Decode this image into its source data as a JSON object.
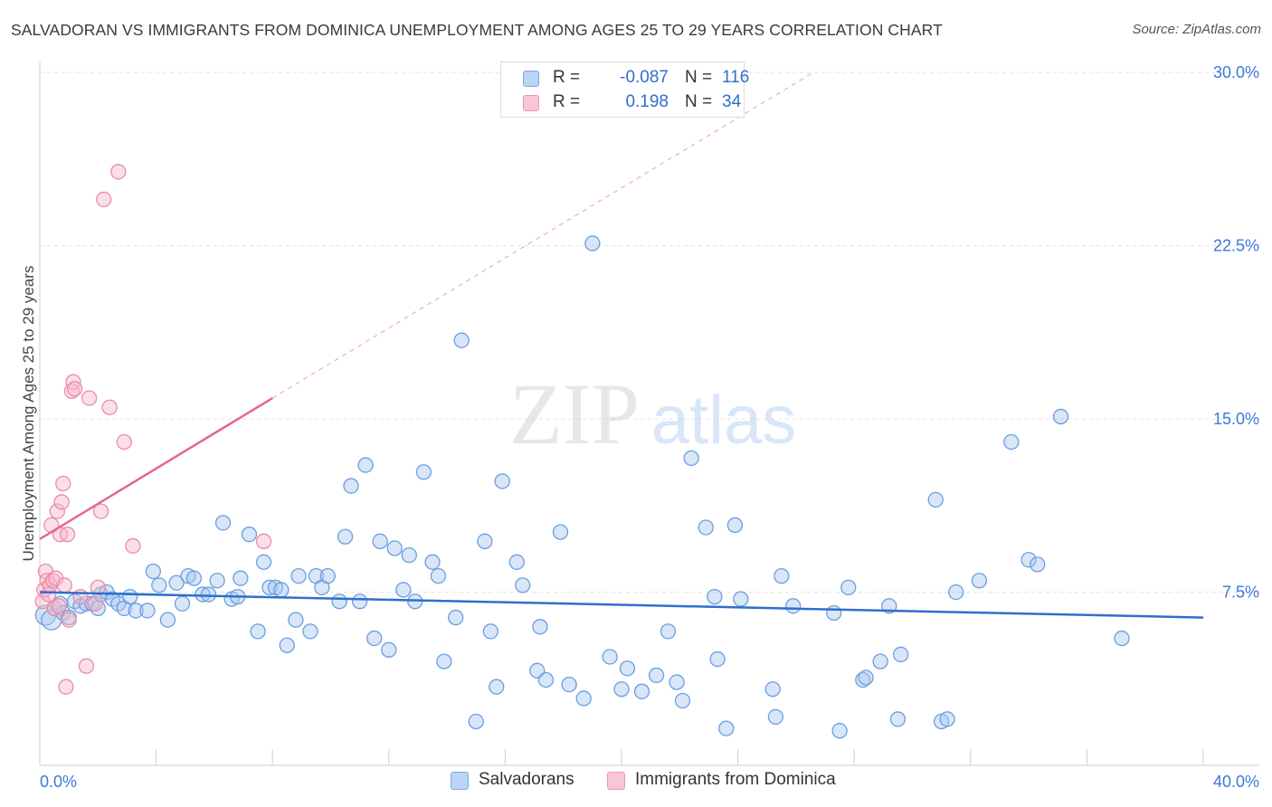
{
  "title": "SALVADORAN VS IMMIGRANTS FROM DOMINICA UNEMPLOYMENT AMONG AGES 25 TO 29 YEARS CORRELATION CHART",
  "source": "Source: ZipAtlas.com",
  "watermark": {
    "zip": "ZIP",
    "atlas": "atlas"
  },
  "legend_top": {
    "rows": [
      {
        "r_label": "R =",
        "r_value": "-0.087",
        "n_label": "N =",
        "n_value": "116"
      },
      {
        "r_label": "R =",
        "r_value": "0.198",
        "n_label": "N =",
        "n_value": "34"
      }
    ]
  },
  "legend_bottom": {
    "series1": "Salvadorans",
    "series2": "Immigrants from Dominica"
  },
  "colors": {
    "blue_fill": "#a9c8f0",
    "blue_stroke": "#6a9ee0",
    "blue_line": "#2e6fce",
    "pink_fill": "#f6b9cb",
    "pink_stroke": "#ec8aa8",
    "pink_line": "#e26892",
    "axis_text": "#3c78d8",
    "grid": "#e3e3e3"
  },
  "chart_data": {
    "type": "scatter",
    "title": "SALVADORAN VS IMMIGRANTS FROM DOMINICA UNEMPLOYMENT AMONG AGES 25 TO 29 YEARS CORRELATION CHART",
    "xlabel": "",
    "ylabel": "Unemployment Among Ages 25 to 29 years",
    "xlim": [
      0,
      40
    ],
    "ylim": [
      0,
      30
    ],
    "x_tick_labels": [
      "0.0%",
      "40.0%"
    ],
    "y_ticks": [
      7.5,
      15.0,
      22.5,
      30.0
    ],
    "y_tick_labels": [
      "7.5%",
      "15.0%",
      "22.5%",
      "30.0%"
    ],
    "series": [
      {
        "name": "Salvadorans",
        "color": "#a9c8f0",
        "R": -0.087,
        "N": 116,
        "trend": {
          "x": [
            0,
            40
          ],
          "y": [
            7.5,
            6.4
          ]
        },
        "points": [
          [
            0.2,
            6.5
          ],
          [
            0.4,
            6.3
          ],
          [
            0.5,
            6.8
          ],
          [
            0.7,
            7.0
          ],
          [
            0.8,
            6.6
          ],
          [
            1.0,
            6.4
          ],
          [
            1.2,
            7.1
          ],
          [
            1.4,
            6.9
          ],
          [
            1.6,
            7.0
          ],
          [
            1.8,
            7.0
          ],
          [
            2.0,
            6.8
          ],
          [
            2.1,
            7.4
          ],
          [
            2.3,
            7.5
          ],
          [
            2.5,
            7.2
          ],
          [
            2.7,
            7.0
          ],
          [
            2.9,
            6.8
          ],
          [
            3.1,
            7.3
          ],
          [
            3.3,
            6.7
          ],
          [
            3.7,
            6.7
          ],
          [
            3.9,
            8.4
          ],
          [
            4.1,
            7.8
          ],
          [
            4.4,
            6.3
          ],
          [
            4.7,
            7.9
          ],
          [
            4.9,
            7.0
          ],
          [
            5.1,
            8.2
          ],
          [
            5.3,
            8.1
          ],
          [
            5.6,
            7.4
          ],
          [
            5.8,
            7.4
          ],
          [
            6.1,
            8.0
          ],
          [
            6.3,
            10.5
          ],
          [
            6.6,
            7.2
          ],
          [
            6.8,
            7.3
          ],
          [
            6.9,
            8.1
          ],
          [
            7.2,
            10.0
          ],
          [
            7.5,
            5.8
          ],
          [
            7.7,
            8.8
          ],
          [
            7.9,
            7.7
          ],
          [
            8.1,
            7.7
          ],
          [
            8.3,
            7.6
          ],
          [
            8.5,
            5.2
          ],
          [
            8.8,
            6.3
          ],
          [
            8.9,
            8.2
          ],
          [
            9.3,
            5.8
          ],
          [
            9.5,
            8.2
          ],
          [
            9.7,
            7.7
          ],
          [
            9.9,
            8.2
          ],
          [
            10.3,
            7.1
          ],
          [
            10.5,
            9.9
          ],
          [
            10.7,
            12.1
          ],
          [
            11.0,
            7.1
          ],
          [
            11.2,
            13.0
          ],
          [
            11.5,
            5.5
          ],
          [
            11.7,
            9.7
          ],
          [
            12.0,
            5.0
          ],
          [
            12.2,
            9.4
          ],
          [
            12.5,
            7.6
          ],
          [
            12.7,
            9.1
          ],
          [
            12.9,
            7.1
          ],
          [
            13.2,
            12.7
          ],
          [
            13.5,
            8.8
          ],
          [
            13.7,
            8.2
          ],
          [
            13.9,
            4.5
          ],
          [
            14.3,
            6.4
          ],
          [
            14.5,
            18.4
          ],
          [
            15.0,
            1.9
          ],
          [
            15.3,
            9.7
          ],
          [
            15.5,
            5.8
          ],
          [
            15.7,
            3.4
          ],
          [
            15.9,
            12.3
          ],
          [
            16.4,
            8.8
          ],
          [
            16.6,
            7.8
          ],
          [
            17.1,
            4.1
          ],
          [
            17.2,
            6.0
          ],
          [
            17.4,
            3.7
          ],
          [
            17.9,
            10.1
          ],
          [
            18.2,
            3.5
          ],
          [
            18.7,
            2.9
          ],
          [
            19.0,
            22.6
          ],
          [
            19.6,
            4.7
          ],
          [
            20.0,
            3.3
          ],
          [
            20.2,
            4.2
          ],
          [
            20.7,
            3.2
          ],
          [
            21.2,
            3.9
          ],
          [
            21.6,
            5.8
          ],
          [
            21.9,
            3.6
          ],
          [
            22.1,
            2.8
          ],
          [
            22.4,
            13.3
          ],
          [
            22.9,
            10.3
          ],
          [
            23.2,
            7.3
          ],
          [
            23.3,
            4.6
          ],
          [
            23.6,
            1.6
          ],
          [
            23.9,
            10.4
          ],
          [
            24.1,
            7.2
          ],
          [
            25.2,
            3.3
          ],
          [
            25.3,
            2.1
          ],
          [
            25.5,
            8.2
          ],
          [
            25.9,
            6.9
          ],
          [
            27.3,
            6.6
          ],
          [
            27.5,
            1.5
          ],
          [
            27.8,
            7.7
          ],
          [
            28.3,
            3.7
          ],
          [
            28.4,
            3.8
          ],
          [
            28.9,
            4.5
          ],
          [
            29.2,
            6.9
          ],
          [
            29.5,
            2.0
          ],
          [
            29.6,
            4.8
          ],
          [
            30.8,
            11.5
          ],
          [
            31.0,
            1.9
          ],
          [
            31.2,
            2.0
          ],
          [
            31.5,
            7.5
          ],
          [
            32.3,
            8.0
          ],
          [
            33.4,
            14.0
          ],
          [
            34.0,
            8.9
          ],
          [
            34.3,
            8.7
          ],
          [
            35.1,
            15.1
          ],
          [
            37.2,
            5.5
          ]
        ]
      },
      {
        "name": "Immigrants from Dominica",
        "color": "#f6b9cb",
        "R": 0.198,
        "N": 34,
        "trend": {
          "x": [
            0,
            8
          ],
          "y": [
            9.8,
            15.9
          ]
        },
        "trend_extension": {
          "x": [
            8,
            26.6
          ],
          "y": [
            15.9,
            30.0
          ]
        },
        "points": [
          [
            0.1,
            7.1
          ],
          [
            0.15,
            7.6
          ],
          [
            0.2,
            8.4
          ],
          [
            0.25,
            8.0
          ],
          [
            0.3,
            7.4
          ],
          [
            0.35,
            7.8
          ],
          [
            0.4,
            10.4
          ],
          [
            0.45,
            8.0
          ],
          [
            0.5,
            6.8
          ],
          [
            0.55,
            8.1
          ],
          [
            0.6,
            11.0
          ],
          [
            0.65,
            6.9
          ],
          [
            0.7,
            10.0
          ],
          [
            0.75,
            11.4
          ],
          [
            0.8,
            12.2
          ],
          [
            0.85,
            7.8
          ],
          [
            0.9,
            3.4
          ],
          [
            0.95,
            10.0
          ],
          [
            1.0,
            6.3
          ],
          [
            1.1,
            16.2
          ],
          [
            1.15,
            16.6
          ],
          [
            1.2,
            16.3
          ],
          [
            1.4,
            7.3
          ],
          [
            1.6,
            4.3
          ],
          [
            1.7,
            15.9
          ],
          [
            1.9,
            7.0
          ],
          [
            2.0,
            7.7
          ],
          [
            2.1,
            11.0
          ],
          [
            2.2,
            24.5
          ],
          [
            2.4,
            15.5
          ],
          [
            2.7,
            25.7
          ],
          [
            2.9,
            14.0
          ],
          [
            3.2,
            9.5
          ],
          [
            7.7,
            9.7
          ]
        ]
      }
    ]
  }
}
